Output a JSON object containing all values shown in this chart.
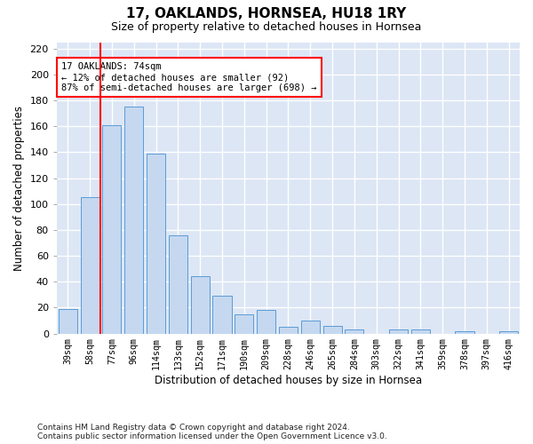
{
  "title1": "17, OAKLANDS, HORNSEA, HU18 1RY",
  "title2": "Size of property relative to detached houses in Hornsea",
  "xlabel": "Distribution of detached houses by size in Hornsea",
  "ylabel": "Number of detached properties",
  "footnote1": "Contains HM Land Registry data © Crown copyright and database right 2024.",
  "footnote2": "Contains public sector information licensed under the Open Government Licence v3.0.",
  "categories": [
    "39sqm",
    "58sqm",
    "77sqm",
    "96sqm",
    "114sqm",
    "133sqm",
    "152sqm",
    "171sqm",
    "190sqm",
    "209sqm",
    "228sqm",
    "246sqm",
    "265sqm",
    "284sqm",
    "303sqm",
    "322sqm",
    "341sqm",
    "359sqm",
    "378sqm",
    "397sqm",
    "416sqm"
  ],
  "values": [
    19,
    105,
    161,
    175,
    139,
    76,
    44,
    29,
    15,
    18,
    5,
    10,
    6,
    3,
    0,
    3,
    3,
    0,
    2,
    0,
    2
  ],
  "bar_color": "#c5d8f0",
  "bar_edge_color": "#5b9bd5",
  "red_line_x": 2,
  "annotation_text": "17 OAKLANDS: 74sqm\n← 12% of detached houses are smaller (92)\n87% of semi-detached houses are larger (698) →",
  "annotation_box_color": "white",
  "annotation_box_edge_color": "red",
  "ylim": [
    0,
    225
  ],
  "yticks": [
    0,
    20,
    40,
    60,
    80,
    100,
    120,
    140,
    160,
    180,
    200,
    220
  ],
  "figure_bg": "#ffffff",
  "axes_bg": "#dce6f5",
  "grid_color": "#ffffff"
}
